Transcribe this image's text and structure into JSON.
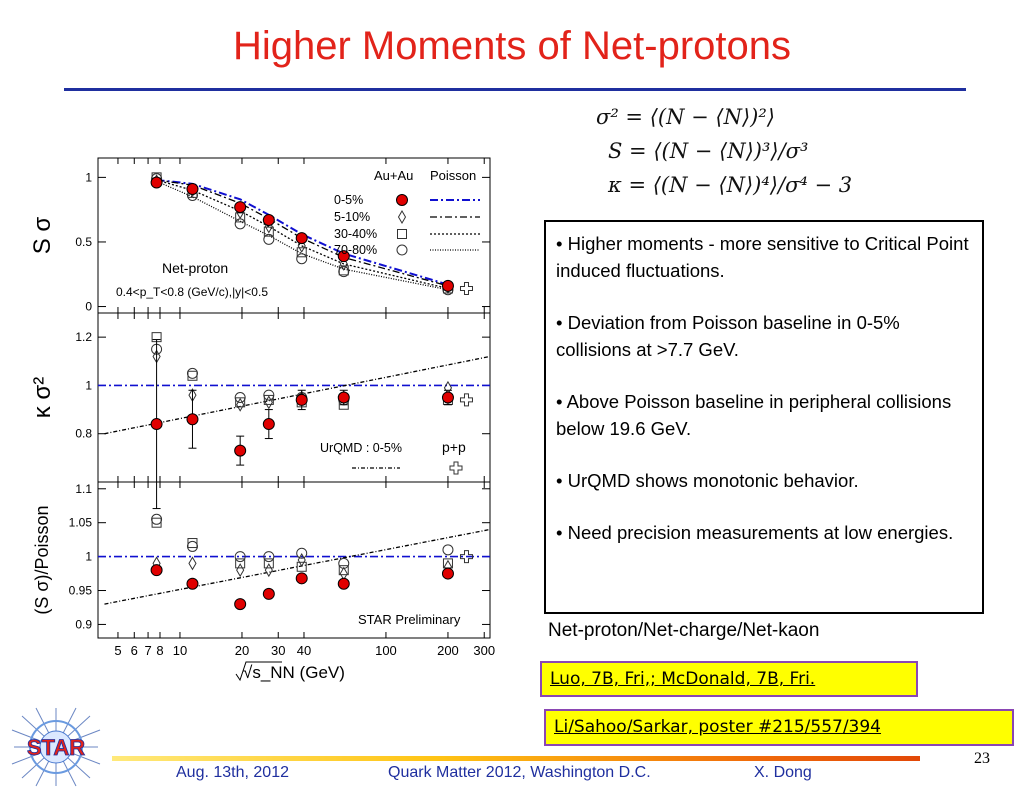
{
  "slide": {
    "title": "Higher Moments of Net-protons",
    "formulas": [
      "σ² = ⟨(N − ⟨N⟩)²⟩",
      "S = ⟨(N − ⟨N⟩)³⟩/σ³",
      "κ = ⟨(N − ⟨N⟩)⁴⟩/σ⁴ − 3"
    ],
    "bullets": [
      "• Higher moments - more sensitive to Critical Point induced fluctuations.",
      "• Deviation from Poisson baseline in 0-5% collisions at >7.7 GeV.",
      "• Above Poisson baseline in peripheral collisions below 19.6 GeV.",
      "• UrQMD shows monotonic behavior.",
      "• Need precision measurements at low energies."
    ],
    "net_label": "Net-proton/Net-charge/Net-kaon",
    "refs": [
      "Luo, 7B, Fri,; McDonald, 7B, Fri. ",
      "Li/Sahoo/Sarkar, poster #215/557/394"
    ],
    "page_number": "23",
    "logo_text": "STAR",
    "footer": {
      "date": "Aug. 13th, 2012",
      "conference": "Quark Matter 2012, Washington D.C.",
      "author": "X. Dong"
    },
    "colors": {
      "title": "#e2231a",
      "accent_blue": "#1f2f9f",
      "data_red": "#e00000",
      "poisson_blue": "#1010d0",
      "ref_bg": "#ffff00",
      "ref_border": "#8a46b4"
    }
  },
  "chart_data": {
    "type": "scatter",
    "x_scale": "log",
    "xlim": [
      4,
      320
    ],
    "x_ticks": [
      5,
      6,
      7,
      8,
      10,
      20,
      30,
      40,
      100,
      200,
      300
    ],
    "x_tick_labels": [
      "5",
      "6",
      "7",
      "8",
      "10",
      "20",
      "30",
      "40",
      "100",
      "200",
      "300"
    ],
    "xlabel": "√s_NN (GeV)",
    "energies": [
      7.7,
      11.5,
      19.6,
      27,
      39,
      62.4,
      200
    ],
    "top_labels": {
      "system": "Au+Au",
      "poisson": "Poisson"
    },
    "centrality_legend": [
      "0-5%",
      "5-10%",
      "30-40%",
      "70-80%"
    ],
    "panels": [
      {
        "ylabel": "S σ",
        "ylim": [
          -0.05,
          1.15
        ],
        "y_ticks": [
          0,
          0.5,
          1
        ],
        "y_tick_labels": [
          "0",
          "0.5",
          "1"
        ],
        "annotations": [
          "Net-proton",
          "0.4<p_T<0.8 (GeV/c),|y|<0.5"
        ],
        "series": [
          {
            "name": "0-5%",
            "marker": "filled-circle",
            "values": [
              0.96,
              0.91,
              0.77,
              0.67,
              0.53,
              0.39,
              0.16
            ]
          },
          {
            "name": "5-10%",
            "marker": "diamond",
            "values": [
              0.97,
              0.9,
              0.73,
              0.62,
              0.47,
              0.33,
              0.15
            ]
          },
          {
            "name": "30-40%",
            "marker": "square",
            "values": [
              1.0,
              0.88,
              0.69,
              0.58,
              0.42,
              0.28,
              0.14
            ]
          },
          {
            "name": "70-80%",
            "marker": "open-circle",
            "values": [
              0.99,
              0.86,
              0.64,
              0.52,
              0.37,
              0.27,
              0.13
            ]
          }
        ],
        "poisson_curves": [
          {
            "name": "0-5%",
            "values": [
              0.98,
              0.95,
              0.83,
              0.71,
              0.56,
              0.41,
              0.17
            ]
          },
          {
            "name": "5-10%",
            "values": [
              0.98,
              0.94,
              0.8,
              0.68,
              0.53,
              0.38,
              0.16
            ]
          },
          {
            "name": "30-40%",
            "values": [
              0.98,
              0.9,
              0.74,
              0.62,
              0.47,
              0.33,
              0.14
            ]
          },
          {
            "name": "70-80%",
            "values": [
              0.97,
              0.85,
              0.66,
              0.55,
              0.41,
              0.29,
              0.13
            ]
          }
        ],
        "pp": {
          "x": 220,
          "y": 0.14
        }
      },
      {
        "ylabel": "κ σ²",
        "ylim": [
          0.6,
          1.3
        ],
        "y_ticks": [
          0.8,
          1,
          1.2
        ],
        "y_tick_labels": [
          "0.8",
          "1",
          "1.2"
        ],
        "baseline": 1,
        "annotations": [
          "UrQMD : 0-5%",
          "p+p"
        ],
        "urqmd": {
          "x": [
            4.3,
            320
          ],
          "y": [
            0.8,
            1.12
          ]
        },
        "series": [
          {
            "name": "0-5%",
            "marker": "filled-circle",
            "values": [
              0.84,
              0.86,
              0.73,
              0.84,
              0.94,
              0.95,
              0.95
            ],
            "errors": [
              0.35,
              0.12,
              0.06,
              0.06,
              0.04,
              0.03,
              0.03
            ]
          },
          {
            "name": "5-10%",
            "marker": "diamond",
            "values": [
              1.12,
              0.96,
              0.92,
              0.93,
              0.95,
              0.95,
              0.99
            ]
          },
          {
            "name": "30-40%",
            "marker": "square",
            "values": [
              1.2,
              1.04,
              0.93,
              0.94,
              0.93,
              0.92,
              0.94
            ]
          },
          {
            "name": "70-80%",
            "marker": "open-circle",
            "values": [
              1.15,
              1.05,
              0.95,
              0.96,
              0.95,
              0.94,
              0.95
            ]
          }
        ],
        "pp": {
          "x": 220,
          "y": 0.94
        }
      },
      {
        "ylabel": "(S σ)/Poisson",
        "ylim": [
          0.88,
          1.11
        ],
        "y_ticks": [
          0.9,
          0.95,
          1,
          1.05,
          1.1
        ],
        "y_tick_labels": [
          "0.9",
          "0.95",
          "1",
          "1.05",
          "1.1"
        ],
        "baseline": 1,
        "annotations": [
          "STAR Preliminary"
        ],
        "urqmd": {
          "x": [
            4.3,
            320
          ],
          "y": [
            0.93,
            1.04
          ]
        },
        "series": [
          {
            "name": "0-5%",
            "marker": "filled-circle",
            "values": [
              0.98,
              0.96,
              0.93,
              0.945,
              0.968,
              0.96,
              0.975
            ]
          },
          {
            "name": "5-10%",
            "marker": "diamond",
            "values": [
              0.99,
              0.99,
              0.98,
              0.98,
              0.995,
              0.975,
              0.985
            ]
          },
          {
            "name": "30-40%",
            "marker": "square",
            "values": [
              1.05,
              1.02,
              0.99,
              0.99,
              0.985,
              0.98,
              0.99
            ]
          },
          {
            "name": "70-80%",
            "marker": "open-circle",
            "values": [
              1.055,
              1.015,
              1.0,
              1.0,
              1.005,
              0.99,
              1.01
            ]
          }
        ],
        "pp": {
          "x": 220,
          "y": 1.0
        }
      }
    ]
  }
}
